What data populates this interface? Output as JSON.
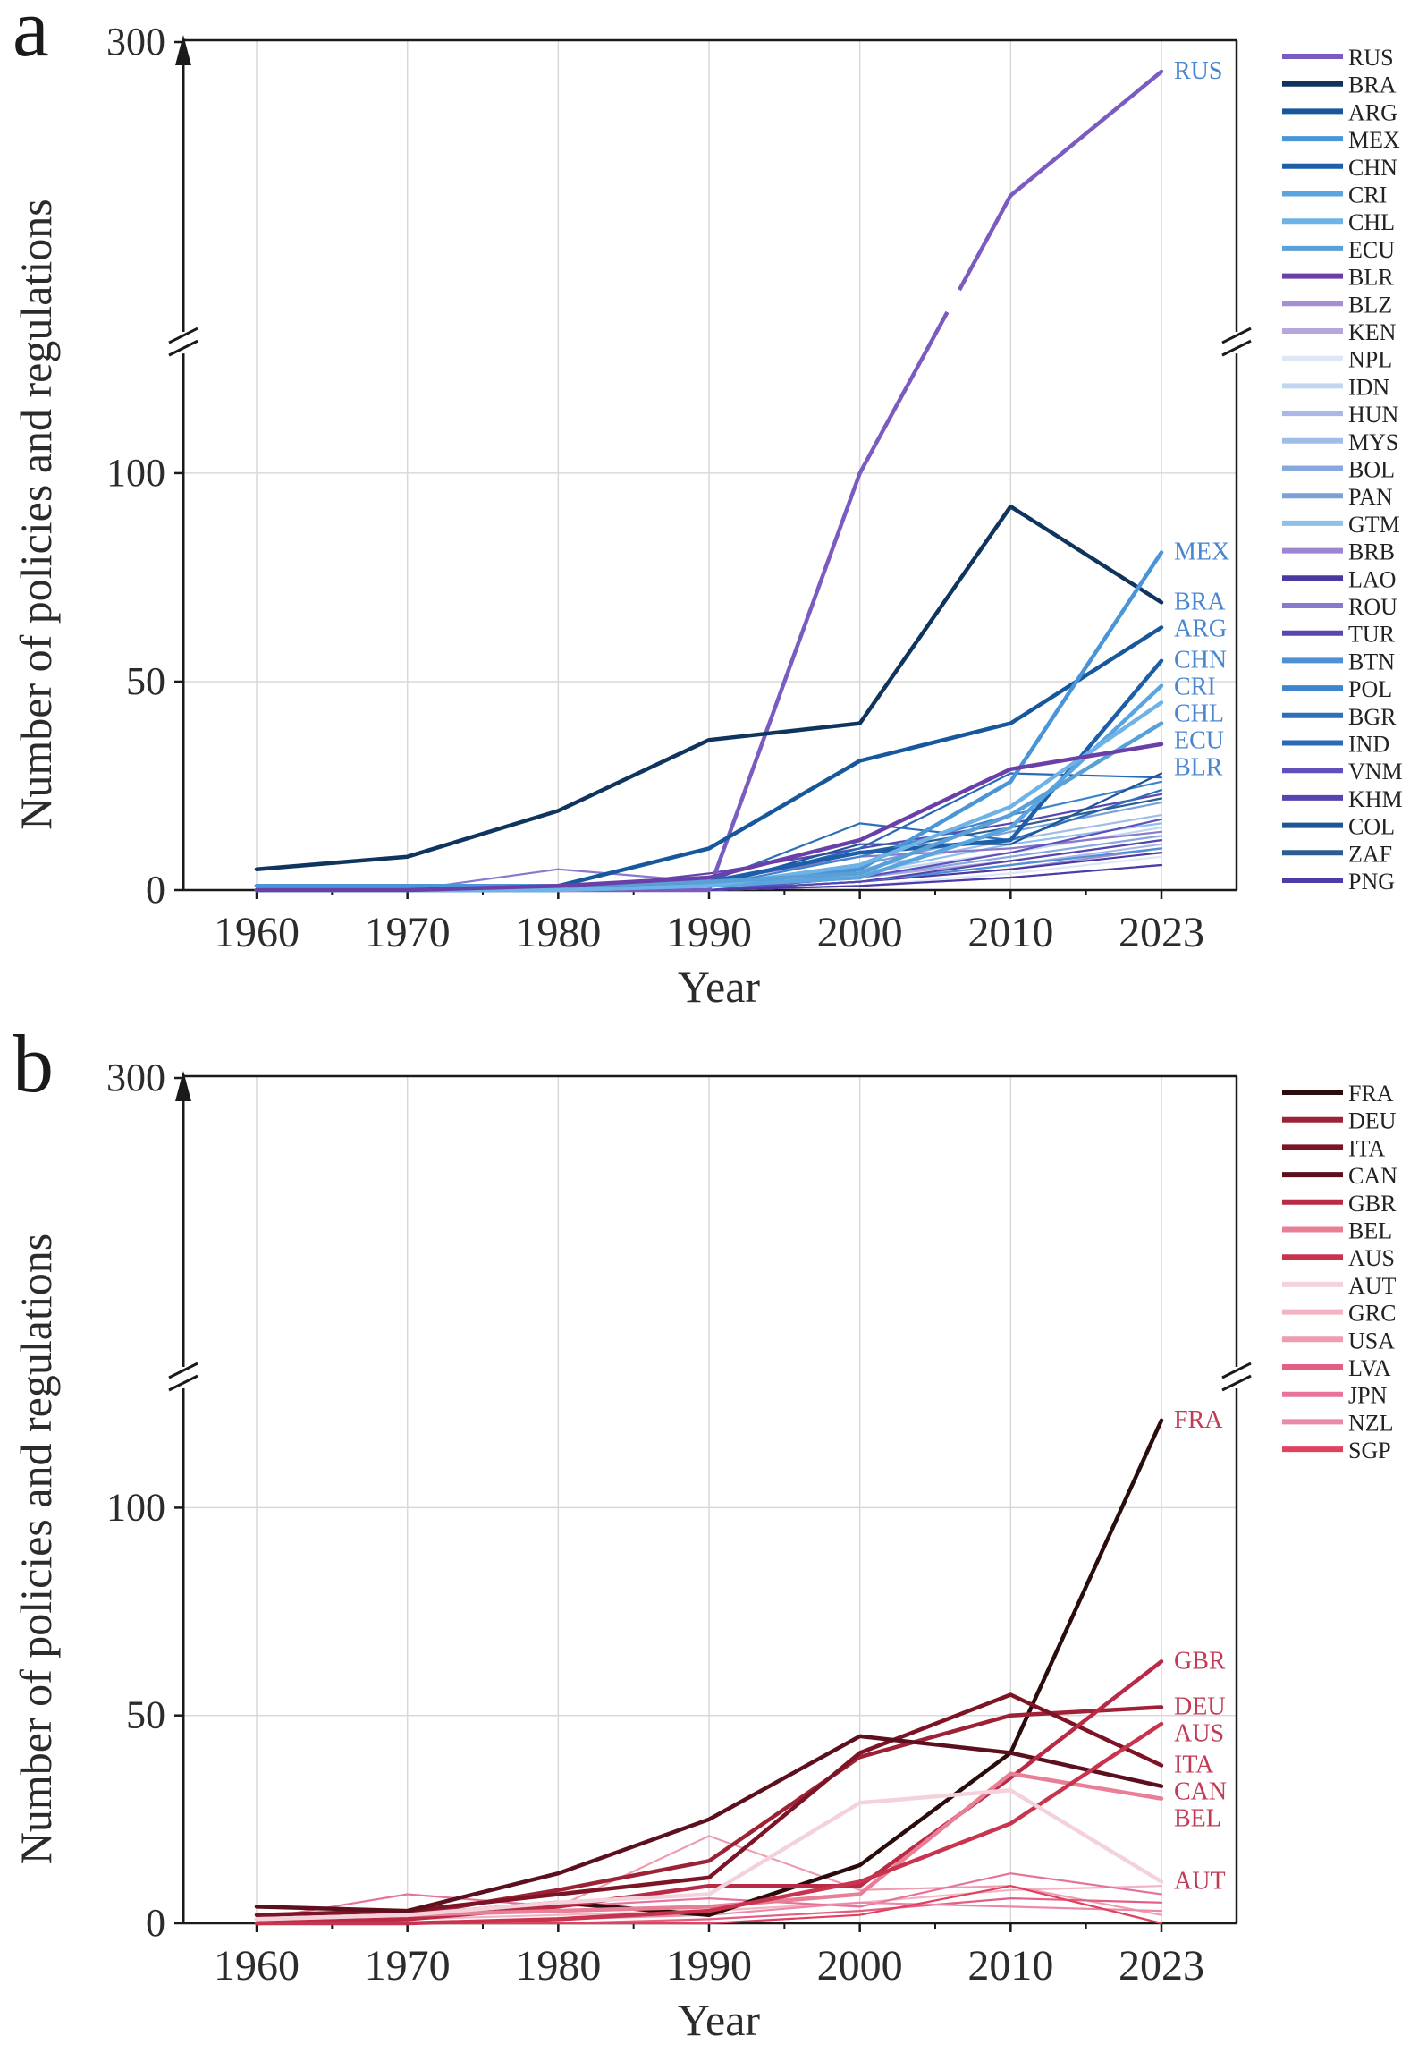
{
  "chart_data": [
    {
      "type": "line",
      "panel_label": "a",
      "title": "",
      "xlabel": "Year",
      "ylabel": "Number of policies and regulations",
      "x": [
        "1960",
        "1970",
        "1980",
        "1990",
        "2000",
        "2010",
        "2023"
      ],
      "yticks": [
        "0",
        "50",
        "100",
        "300"
      ],
      "ylim": [
        0,
        300
      ],
      "axis_break": [
        130,
        250
      ],
      "grid": true,
      "legend_position": "right",
      "series": [
        {
          "name": "RUS",
          "color": "#7a5cc0",
          "width": 4.5,
          "values": [
            0,
            0,
            0,
            0,
            100,
            274,
            295
          ],
          "gap": [
            4,
            5
          ],
          "end_label": true
        },
        {
          "name": "BRA",
          "color": "#0f355e",
          "width": 4.5,
          "values": [
            5,
            8,
            19,
            36,
            40,
            92,
            69
          ],
          "end_label": true
        },
        {
          "name": "ARG",
          "color": "#17589c",
          "width": 4.5,
          "values": [
            1,
            1,
            1,
            10,
            31,
            40,
            63
          ],
          "end_label": true
        },
        {
          "name": "MEX",
          "color": "#4a94d8",
          "width": 4.5,
          "values": [
            1,
            1,
            1,
            1,
            5,
            26,
            81
          ],
          "end_label": true
        },
        {
          "name": "CHN",
          "color": "#1c5fa8",
          "width": 4.5,
          "values": [
            0,
            0,
            0,
            2,
            9,
            12,
            55
          ],
          "end_label": true
        },
        {
          "name": "CRI",
          "color": "#5aa5e0",
          "width": 4.5,
          "values": [
            0,
            0,
            0,
            1,
            3,
            15,
            49
          ],
          "end_label": true
        },
        {
          "name": "CHL",
          "color": "#6eb2e6",
          "width": 4.5,
          "values": [
            0,
            0,
            0,
            1,
            6,
            20,
            45
          ],
          "end_label": true
        },
        {
          "name": "ECU",
          "color": "#5a9fd6",
          "width": 4.5,
          "values": [
            0,
            0,
            1,
            2,
            4,
            18,
            40
          ],
          "end_label": true
        },
        {
          "name": "BLR",
          "color": "#6a3fa8",
          "width": 4.5,
          "values": [
            0,
            0,
            1,
            3,
            12,
            29,
            35
          ],
          "end_label": true
        },
        {
          "name": "BLZ",
          "color": "#a58fd4",
          "width": 2.2,
          "values": [
            0,
            0,
            0,
            0,
            2,
            5,
            10
          ]
        },
        {
          "name": "KEN",
          "color": "#b7a6de",
          "width": 2.2,
          "values": [
            0,
            0,
            0,
            1,
            3,
            7,
            12
          ]
        },
        {
          "name": "NPL",
          "color": "#dde7f6",
          "width": 2.2,
          "values": [
            0,
            0,
            0,
            0,
            1,
            4,
            8
          ]
        },
        {
          "name": "IDN",
          "color": "#c3d6f0",
          "width": 2.2,
          "values": [
            0,
            0,
            0,
            1,
            4,
            9,
            15
          ]
        },
        {
          "name": "HUN",
          "color": "#aab8e8",
          "width": 2.2,
          "values": [
            0,
            0,
            0,
            0,
            2,
            6,
            11
          ]
        },
        {
          "name": "MYS",
          "color": "#9fbde6",
          "width": 2.2,
          "values": [
            0,
            0,
            0,
            1,
            5,
            12,
            18
          ]
        },
        {
          "name": "BOL",
          "color": "#86a8dc",
          "width": 2.2,
          "values": [
            0,
            0,
            0,
            0,
            3,
            8,
            13
          ]
        },
        {
          "name": "PAN",
          "color": "#7aa2d8",
          "width": 2.2,
          "values": [
            0,
            0,
            0,
            1,
            6,
            14,
            21
          ]
        },
        {
          "name": "GTM",
          "color": "#8ec0ea",
          "width": 2.2,
          "values": [
            0,
            0,
            0,
            0,
            4,
            11,
            16
          ]
        },
        {
          "name": "BRB",
          "color": "#9d84d0",
          "width": 2.2,
          "values": [
            0,
            0,
            0,
            0,
            1,
            3,
            6
          ]
        },
        {
          "name": "LAO",
          "color": "#4a3aa0",
          "width": 2.2,
          "values": [
            0,
            0,
            0,
            0,
            2,
            5,
            9
          ]
        },
        {
          "name": "ROU",
          "color": "#8a78cc",
          "width": 2.2,
          "values": [
            0,
            0,
            5,
            2,
            8,
            10,
            14
          ]
        },
        {
          "name": "TUR",
          "color": "#5b46b0",
          "width": 2.2,
          "values": [
            0,
            0,
            0,
            4,
            10,
            16,
            23
          ]
        },
        {
          "name": "BTN",
          "color": "#4f8fd4",
          "width": 2.2,
          "values": [
            0,
            0,
            0,
            0,
            2,
            6,
            10
          ]
        },
        {
          "name": "POL",
          "color": "#3e84cc",
          "width": 2.2,
          "values": [
            0,
            0,
            0,
            1,
            8,
            18,
            26
          ]
        },
        {
          "name": "BGR",
          "color": "#2e6fba",
          "width": 2.2,
          "values": [
            0,
            0,
            0,
            2,
            16,
            12,
            24
          ]
        },
        {
          "name": "IND",
          "color": "#2a68b8",
          "width": 2.2,
          "values": [
            0,
            0,
            0,
            1,
            10,
            28,
            27
          ]
        },
        {
          "name": "VNM",
          "color": "#6150bc",
          "width": 2.2,
          "values": [
            0,
            0,
            0,
            0,
            3,
            9,
            17
          ]
        },
        {
          "name": "KHM",
          "color": "#5446ae",
          "width": 2.2,
          "values": [
            0,
            0,
            0,
            0,
            2,
            7,
            12
          ]
        },
        {
          "name": "COL",
          "color": "#1e5596",
          "width": 2.2,
          "values": [
            0,
            0,
            0,
            1,
            11,
            11,
            28
          ]
        },
        {
          "name": "ZAF",
          "color": "#2b5d92",
          "width": 2.2,
          "values": [
            0,
            0,
            0,
            2,
            9,
            15,
            22
          ]
        },
        {
          "name": "PNG",
          "color": "#4c3ca8",
          "width": 2.2,
          "values": [
            0,
            0,
            0,
            0,
            1,
            3,
            6
          ]
        }
      ]
    },
    {
      "type": "line",
      "panel_label": "b",
      "title": "",
      "xlabel": "Year",
      "ylabel": "Number of policies and regulations",
      "x": [
        "1960",
        "1970",
        "1980",
        "1990",
        "2000",
        "2010",
        "2023"
      ],
      "yticks": [
        "0",
        "50",
        "100",
        "300"
      ],
      "ylim": [
        0,
        300
      ],
      "axis_break": [
        130,
        250
      ],
      "grid": true,
      "legend_position": "right",
      "series": [
        {
          "name": "FRA",
          "color": "#2a0c0c",
          "width": 4.5,
          "values": [
            0,
            2,
            5,
            2,
            14,
            41,
            121
          ],
          "end_label": true
        },
        {
          "name": "DEU",
          "color": "#9e2236",
          "width": 4.5,
          "values": [
            0,
            2,
            8,
            15,
            40,
            50,
            52
          ],
          "end_label": true
        },
        {
          "name": "ITA",
          "color": "#7c1426",
          "width": 4.5,
          "values": [
            2,
            3,
            7,
            11,
            41,
            55,
            38
          ],
          "end_label": true
        },
        {
          "name": "CAN",
          "color": "#5c0f1c",
          "width": 4.5,
          "values": [
            4,
            3,
            12,
            25,
            45,
            41,
            33
          ],
          "end_label": true
        },
        {
          "name": "GBR",
          "color": "#b82a46",
          "width": 4.5,
          "values": [
            0,
            1,
            4,
            9,
            9,
            35,
            63
          ],
          "end_label": true
        },
        {
          "name": "BEL",
          "color": "#e87f96",
          "width": 4.5,
          "values": [
            1,
            2,
            3,
            4,
            7,
            36,
            30
          ],
          "end_label": true
        },
        {
          "name": "AUS",
          "color": "#c8344e",
          "width": 4.5,
          "values": [
            0,
            0,
            1,
            3,
            10,
            24,
            48
          ],
          "end_label": true
        },
        {
          "name": "AUT",
          "color": "#f4d2dc",
          "width": 4.5,
          "values": [
            1,
            2,
            5,
            7,
            29,
            32,
            10
          ],
          "end_label": true
        },
        {
          "name": "GRC",
          "color": "#f2b3c3",
          "width": 2.2,
          "values": [
            0,
            1,
            2,
            3,
            5,
            8,
            9
          ]
        },
        {
          "name": "USA",
          "color": "#ee9cb0",
          "width": 2.2,
          "values": [
            2,
            3,
            4,
            21,
            8,
            9,
            2
          ]
        },
        {
          "name": "LVA",
          "color": "#e35e84",
          "width": 2.2,
          "values": [
            0,
            0,
            0,
            1,
            3,
            6,
            5
          ]
        },
        {
          "name": "JPN",
          "color": "#e6739a",
          "width": 2.2,
          "values": [
            1,
            7,
            4,
            6,
            4,
            12,
            7
          ]
        },
        {
          "name": "NZL",
          "color": "#ea8aa8",
          "width": 2.2,
          "values": [
            0,
            0,
            1,
            2,
            5,
            4,
            3
          ]
        },
        {
          "name": "SGP",
          "color": "#e0415f",
          "width": 2.2,
          "values": [
            0,
            0,
            0,
            0,
            2,
            9,
            0
          ]
        }
      ]
    }
  ]
}
